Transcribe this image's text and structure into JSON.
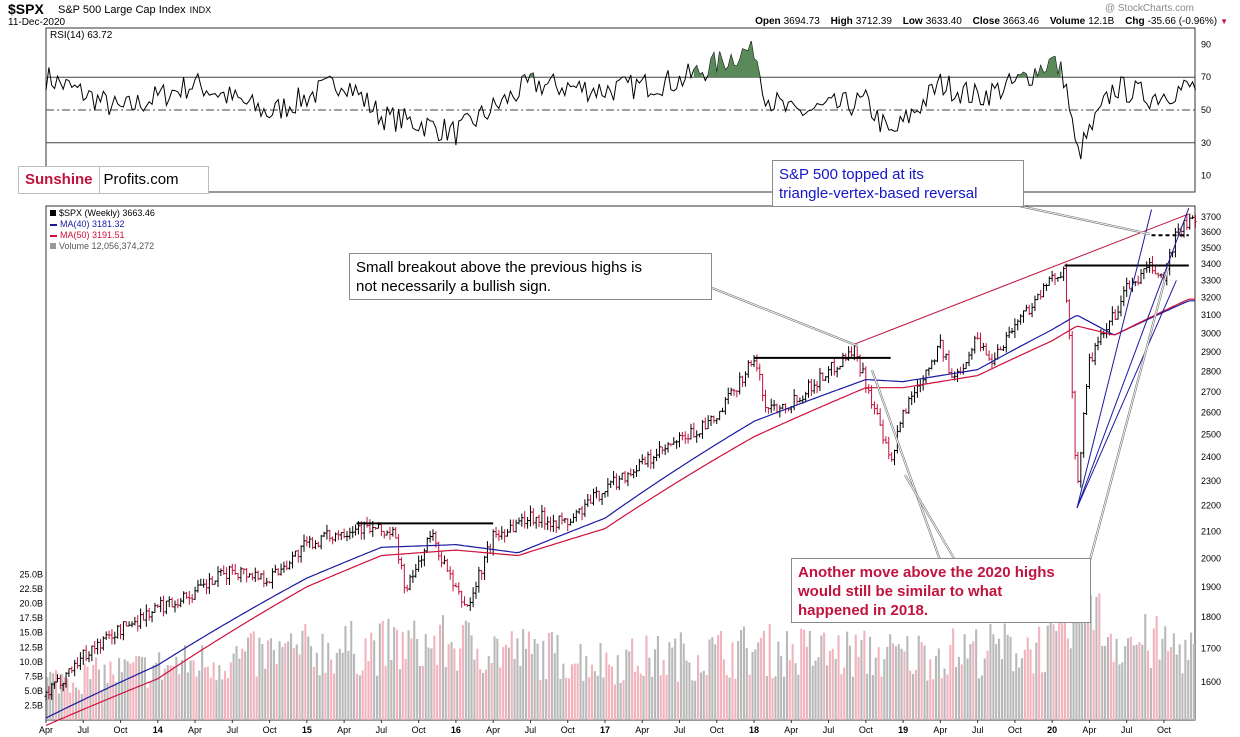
{
  "header": {
    "symbol": "$SPX",
    "name": "S&P 500 Large Cap Index",
    "exchange": "INDX",
    "date": "11-Dec-2020",
    "watermark": "@ StockCharts.com",
    "open_label": "Open",
    "open": "3694.73",
    "high_label": "High",
    "high": "3712.39",
    "low_label": "Low",
    "low": "3633.40",
    "close_label": "Close",
    "close": "3663.46",
    "volume_label": "Volume",
    "volume": "12.1B",
    "chg_label": "Chg",
    "chg": "-35.66 (-0.96%)"
  },
  "rsi": {
    "label": "RSI(14) 63.72"
  },
  "legend": {
    "price": "$SPX (Weekly) 3663.46",
    "ma40": "MA(40) 3181.32",
    "ma50": "MA(50) 3191.51",
    "volume": "Volume 12,056,374,272"
  },
  "brand": {
    "part1": "Sunshine",
    "part2": "Profits.com"
  },
  "callouts": {
    "breakout": [
      "Small breakout above the previous highs is",
      "not necessarily a bullish sign."
    ],
    "topped": [
      "S&P 500 topped at its",
      "triangle-vertex-based reversal"
    ],
    "another": [
      "Another move above the 2020 highs",
      "would still be similar to what",
      "happened in 2018."
    ]
  },
  "colors": {
    "ma40": "#1a1aa0",
    "ma50": "#d0103a",
    "bull": "#000000",
    "bear": "#c0143c",
    "trend": "#c0143c",
    "rsi_fill": "#5a8a5a",
    "callout_blue": "#1414c8",
    "callout_red": "#c0143c"
  },
  "chart_data": [
    {
      "type": "line",
      "name": "RSI(14)",
      "ylim": [
        0,
        100
      ],
      "yticks": [
        10,
        30,
        50,
        70,
        90
      ],
      "reference_lines": [
        30,
        50,
        70
      ],
      "x": [
        "2013-04",
        "2013-10",
        "2014-04",
        "2014-10",
        "2015-04",
        "2015-07",
        "2015-10",
        "2016-01",
        "2016-07",
        "2017-01",
        "2017-07",
        "2018-01",
        "2018-02",
        "2018-04",
        "2018-10",
        "2018-12",
        "2019-04",
        "2019-07",
        "2019-10",
        "2020-01",
        "2020-02",
        "2020-03",
        "2020-06",
        "2020-09",
        "2020-12"
      ],
      "values": [
        70,
        50,
        66,
        48,
        68,
        46,
        42,
        36,
        66,
        62,
        68,
        88,
        58,
        48,
        55,
        34,
        66,
        58,
        66,
        80,
        70,
        22,
        64,
        58,
        64
      ]
    },
    {
      "type": "line",
      "title": "$SPX (Weekly) 3663.46",
      "ylim": [
        1520,
        3760
      ],
      "yscale": "log",
      "yticks": [
        1600,
        1700,
        1800,
        1900,
        2000,
        2100,
        2200,
        2300,
        2400,
        2500,
        2600,
        2700,
        2800,
        2900,
        3000,
        3100,
        3200,
        3300,
        3400,
        3500,
        3600,
        3700
      ],
      "x_ticks": [
        "Apr",
        "Jul",
        "Oct",
        "14",
        "Apr",
        "Jul",
        "Oct",
        "15",
        "Apr",
        "Jul",
        "Oct",
        "16",
        "Apr",
        "Jul",
        "Oct",
        "17",
        "Apr",
        "Jul",
        "Oct",
        "18",
        "Apr",
        "Jul",
        "Oct",
        "19",
        "Apr",
        "Jul",
        "Oct",
        "20",
        "Apr",
        "Jul",
        "Oct"
      ],
      "series": [
        {
          "name": "$SPX (Weekly)",
          "x": [
            "2013-04",
            "2013-07",
            "2013-10",
            "2014-01",
            "2014-04",
            "2014-07",
            "2014-10",
            "2015-01",
            "2015-05",
            "2015-08",
            "2015-09",
            "2015-11",
            "2016-01",
            "2016-02",
            "2016-04",
            "2016-07",
            "2016-10",
            "2017-01",
            "2017-04",
            "2017-07",
            "2017-10",
            "2018-01",
            "2018-02",
            "2018-04",
            "2018-07",
            "2018-09",
            "2018-10",
            "2018-12",
            "2019-01",
            "2019-04",
            "2019-05",
            "2019-07",
            "2019-08",
            "2019-10",
            "2020-01",
            "2020-02",
            "2020-03",
            "2020-04",
            "2020-06",
            "2020-07",
            "2020-09",
            "2020-10",
            "2020-11",
            "2020-12"
          ],
          "values": [
            1560,
            1680,
            1760,
            1830,
            1880,
            1960,
            1930,
            2050,
            2120,
            2090,
            1880,
            2090,
            1880,
            1830,
            2080,
            2160,
            2130,
            2270,
            2370,
            2470,
            2570,
            2870,
            2620,
            2650,
            2800,
            2920,
            2750,
            2360,
            2600,
            2940,
            2750,
            2980,
            2850,
            3050,
            3300,
            3390,
            2250,
            2850,
            3100,
            3250,
            3380,
            3300,
            3600,
            3663
          ]
        },
        {
          "name": "MA(40)",
          "x": [
            "2013-04",
            "2014-01",
            "2015-01",
            "2015-07",
            "2016-01",
            "2016-06",
            "2017-01",
            "2018-01",
            "2018-10",
            "2019-01",
            "2019-07",
            "2020-01",
            "2020-03",
            "2020-06",
            "2020-12"
          ],
          "values": [
            1500,
            1650,
            1930,
            2040,
            2050,
            2020,
            2150,
            2560,
            2760,
            2750,
            2810,
            3020,
            3100,
            2990,
            3181
          ]
        },
        {
          "name": "MA(50)",
          "x": [
            "2013-04",
            "2014-01",
            "2015-01",
            "2015-07",
            "2016-01",
            "2016-06",
            "2017-01",
            "2018-01",
            "2018-10",
            "2019-01",
            "2019-07",
            "2020-01",
            "2020-03",
            "2020-06",
            "2020-12"
          ],
          "values": [
            1480,
            1610,
            1900,
            2010,
            2030,
            2010,
            2110,
            2490,
            2720,
            2720,
            2780,
            2960,
            3040,
            2990,
            3191
          ]
        }
      ],
      "horizontal_lines": [
        {
          "value": 2130,
          "from": "2015-05",
          "to": "2016-04"
        },
        {
          "value": 2870,
          "from": "2018-01",
          "to": "2018-12"
        },
        {
          "value": 3390,
          "from": "2020-02",
          "to": "2020-12"
        },
        {
          "value": 3580,
          "from": "2020-09",
          "to": "2020-12"
        }
      ],
      "trendlines": [
        {
          "from": [
            "2018-09",
            2940
          ],
          "to": [
            "2020-12",
            3720
          ]
        }
      ]
    },
    {
      "type": "bar",
      "name": "Volume",
      "ylim": [
        0,
        27500000000
      ],
      "yticks": [
        "2.5B",
        "5.0B",
        "7.5B",
        "10.0B",
        "12.5B",
        "15.0B",
        "17.5B",
        "20.0B",
        "22.5B",
        "25.0B"
      ],
      "x": [
        "2013",
        "2014",
        "2015",
        "2016",
        "2017",
        "2018",
        "2019",
        "2020-02",
        "2020-03",
        "2020-06",
        "2020-12"
      ],
      "values": [
        6000000000,
        9000000000,
        12000000000,
        13000000000,
        10000000000,
        12000000000,
        11000000000,
        13000000000,
        20000000000,
        14000000000,
        12056374272
      ]
    }
  ]
}
